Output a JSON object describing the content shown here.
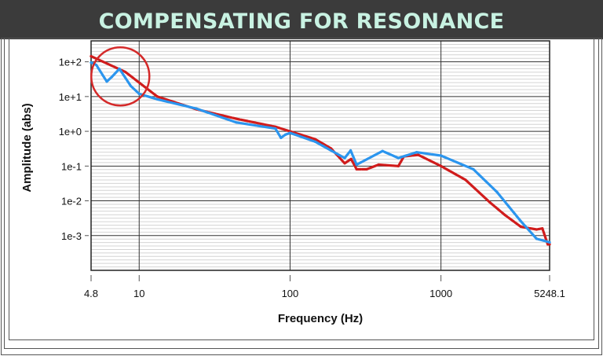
{
  "banner": {
    "title": "COMPENSATING FOR RESONANCE"
  },
  "colors": {
    "banner_bg": "#3b3b3b",
    "banner_text": "#c8f2e2",
    "series_red": "#d01c1c",
    "series_blue": "#2b95ee",
    "annotation_circle": "#d42a2a"
  },
  "chart_data": {
    "type": "line",
    "title": "",
    "xlabel": "Frequency (Hz)",
    "ylabel": "Amplitude (abs)",
    "xscale": "log",
    "yscale": "log",
    "xlim": [
      4.8,
      5248.1
    ],
    "ylim": [
      0.0001,
      400
    ],
    "x_ticks": [
      {
        "value": 4.8,
        "label": "4.8"
      },
      {
        "value": 10,
        "label": "10"
      },
      {
        "value": 100,
        "label": "100"
      },
      {
        "value": 1000,
        "label": "1000"
      },
      {
        "value": 5248.1,
        "label": "5248.1"
      }
    ],
    "y_ticks": [
      {
        "value": 100,
        "label": "1e+2"
      },
      {
        "value": 10,
        "label": "1e+1"
      },
      {
        "value": 1,
        "label": "1e+0"
      },
      {
        "value": 0.1,
        "label": "1e-1"
      },
      {
        "value": 0.01,
        "label": "1e-2"
      },
      {
        "value": 0.001,
        "label": "1e-3"
      }
    ],
    "grid": true,
    "legend": "none",
    "annotation": {
      "type": "circle",
      "center": [
        7.5,
        40
      ]
    },
    "series": [
      {
        "color": "red",
        "x": [
          4.8,
          8.1,
          13.2,
          24,
          44,
          80,
          100,
          147,
          187,
          230,
          254,
          276,
          322,
          386,
          522,
          568,
          707,
          1000,
          1456,
          2090,
          2655,
          3380,
          4300,
          4700,
          5100,
          5248.1
        ],
        "y": [
          144,
          51,
          10,
          4.3,
          2.3,
          1.35,
          1.0,
          0.59,
          0.32,
          0.12,
          0.16,
          0.081,
          0.081,
          0.11,
          0.1,
          0.19,
          0.21,
          0.1,
          0.04,
          0.0093,
          0.0039,
          0.0018,
          0.0015,
          0.0016,
          0.00056,
          0.00056
        ]
      },
      {
        "color": "blue",
        "x": [
          4.8,
          5.2,
          6.1,
          6.6,
          7.4,
          8.8,
          10,
          13.2,
          24,
          44,
          80,
          87,
          93,
          100,
          147,
          230,
          252,
          276,
          410,
          522,
          690,
          1000,
          1640,
          2350,
          3380,
          4300,
          5248.1
        ],
        "y": [
          95,
          81,
          27,
          37,
          63,
          20,
          12,
          8.3,
          4.5,
          1.8,
          1.2,
          0.65,
          0.8,
          0.9,
          0.5,
          0.17,
          0.28,
          0.11,
          0.27,
          0.17,
          0.25,
          0.2,
          0.081,
          0.018,
          0.0026,
          0.00081,
          0.00064
        ]
      }
    ]
  }
}
